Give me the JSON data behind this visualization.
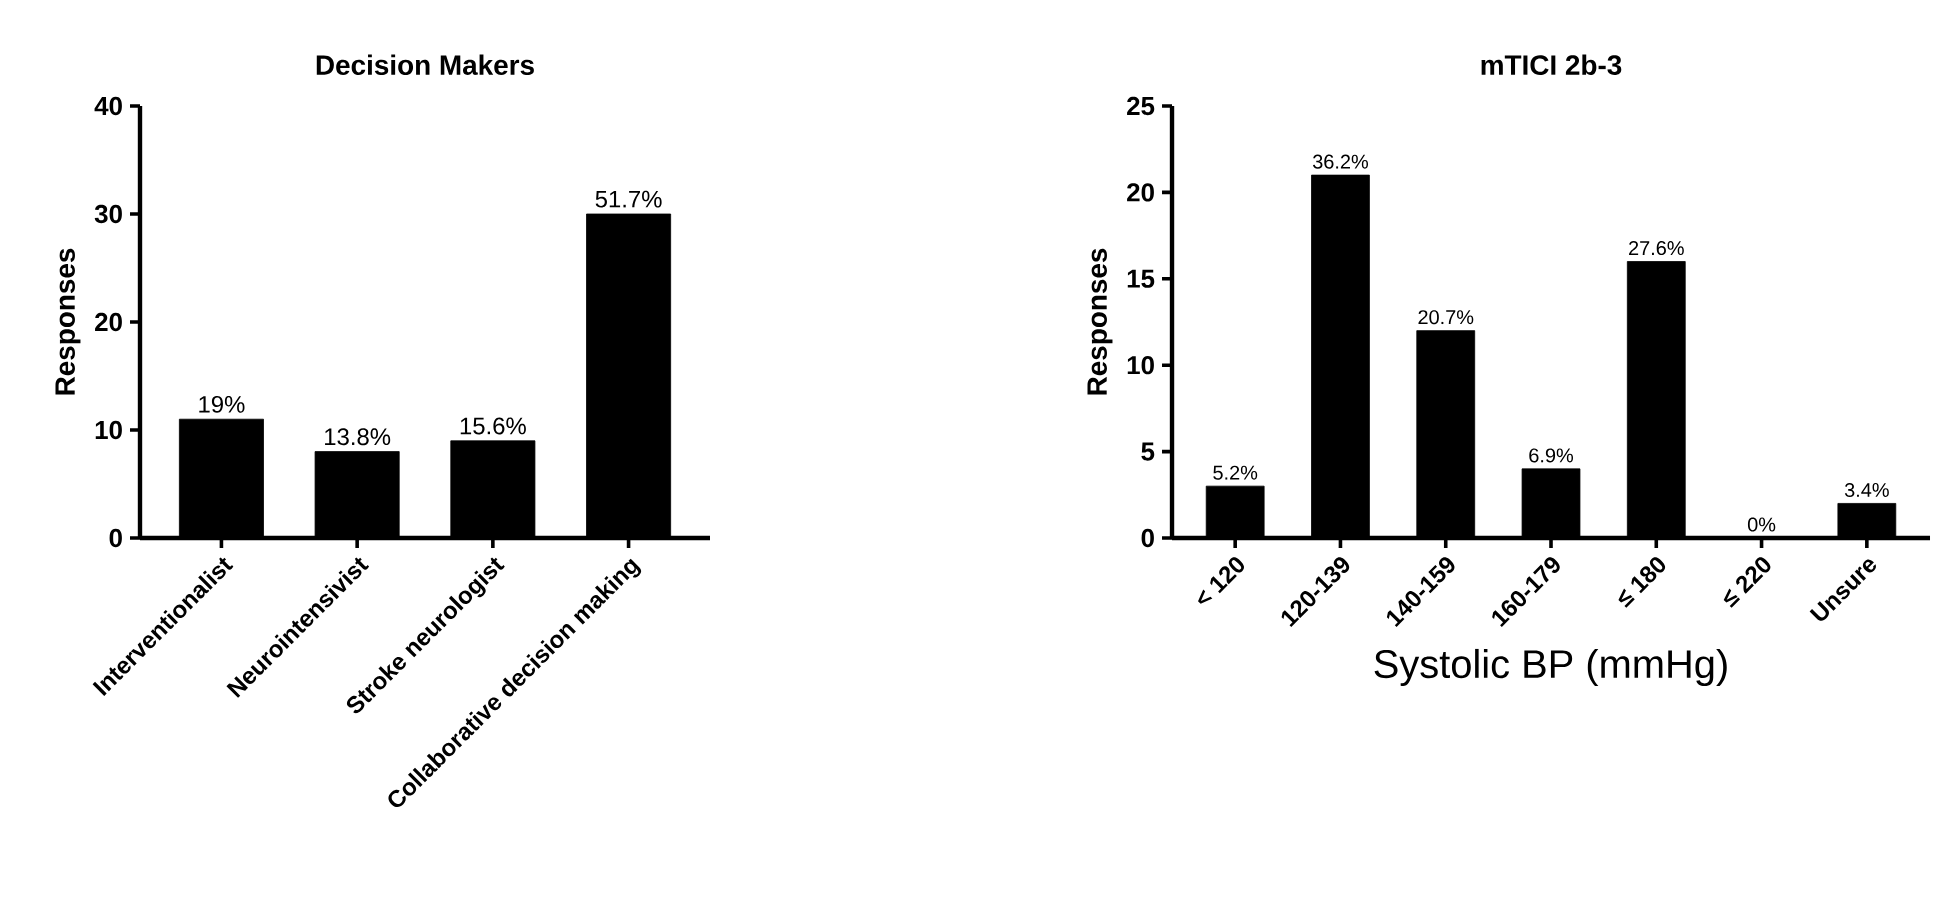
{
  "chart_data": [
    {
      "type": "bar",
      "title": "Decision Makers",
      "ylabel": "Responses",
      "categories": [
        "Interventionalist",
        "Neurointensivist",
        "Stroke neurologist",
        "Collaborative decision making"
      ],
      "values": [
        11,
        8,
        9,
        30
      ],
      "color": "#000000",
      "ylim": [
        0,
        40
      ],
      "yticks": [
        0,
        10,
        20,
        30,
        40
      ],
      "annotations": [
        {
          "text": "19%",
          "x": "Interventionalist",
          "y": 11
        },
        {
          "text": "13.8%",
          "x": "Neurointensivist",
          "y": 8
        },
        {
          "text": "15.6%",
          "x": "Stroke neurologist",
          "y": 9
        },
        {
          "text": "51.7%",
          "x": "Collaborative decision making",
          "y": 30
        }
      ]
    },
    {
      "type": "bar",
      "title": "mTICI 2b-3",
      "ylabel": "Responses",
      "xlabel": "Systolic BP (mmHg)",
      "categories": [
        "< 120",
        "120-139",
        "140-159",
        "160-179",
        "≤ 180",
        "≤ 220",
        "Unsure"
      ],
      "values": [
        3,
        21,
        12,
        4,
        16,
        0,
        2
      ],
      "color": "#000000",
      "ylim": [
        0,
        25
      ],
      "yticks": [
        0,
        5,
        10,
        15,
        20,
        25
      ],
      "annotations": [
        {
          "text": "5.2%",
          "x": "< 120",
          "y": 3
        },
        {
          "text": "36.2%",
          "x": "120-139",
          "y": 21
        },
        {
          "text": "20.7%",
          "x": "140-159",
          "y": 12
        },
        {
          "text": "6.9%",
          "x": "160-179",
          "y": 4
        },
        {
          "text": "27.6%",
          "x": "≤ 180",
          "y": 16
        },
        {
          "text": "0%",
          "x": "≤ 220",
          "y": 0
        },
        {
          "text": "3.4%",
          "x": "Unsure",
          "y": 2
        }
      ]
    }
  ]
}
